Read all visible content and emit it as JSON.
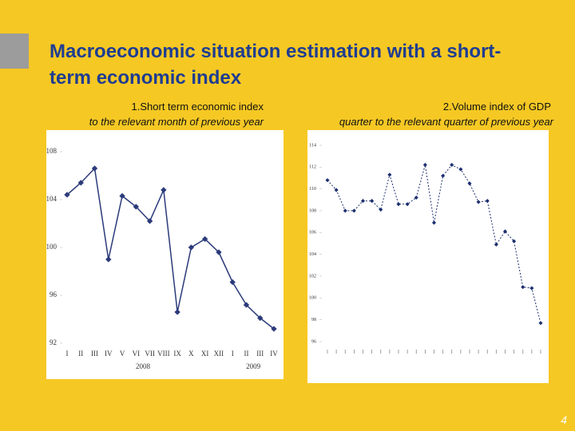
{
  "title": "Macroeconomic situation estimation with a short-term economic index",
  "page_number": "4",
  "chart_data": [
    {
      "type": "line",
      "title": "1.Short term economic index",
      "subtitle": "to the relevant month of previous year",
      "categories": [
        "I",
        "II",
        "III",
        "IV",
        "V",
        "VI",
        "VII",
        "VIII",
        "IX",
        "X",
        "XI",
        "XII",
        "I",
        "II",
        "III",
        "IV"
      ],
      "x_groups": [
        "2008",
        "2009"
      ],
      "values": [
        104.4,
        105.4,
        106.6,
        99.0,
        104.3,
        103.4,
        102.2,
        104.8,
        94.6,
        100.0,
        100.7,
        99.6,
        97.1,
        95.2,
        94.1,
        93.2
      ],
      "color": "#2b3a7a",
      "ylim": [
        92,
        108
      ],
      "yticks": [
        92,
        96,
        100,
        104,
        108
      ],
      "grid": false
    },
    {
      "type": "line",
      "title": "2.Volume index of GDP",
      "subtitle": "quarter to the relevant quarter of previous year",
      "categories": [
        null,
        null,
        null,
        null,
        null,
        null,
        null,
        null,
        null,
        null,
        null,
        null,
        null,
        null,
        null,
        null,
        null,
        null,
        null,
        null,
        null,
        null,
        null,
        null,
        null
      ],
      "values": [
        110.8,
        109.9,
        108.0,
        108.0,
        108.9,
        108.9,
        108.1,
        111.3,
        108.6,
        108.6,
        109.2,
        112.2,
        106.9,
        111.2,
        112.2,
        111.8,
        110.5,
        108.8,
        108.9,
        104.9,
        106.1,
        105.2,
        101.0,
        100.9,
        97.7
      ],
      "color": "#1c2f6e",
      "ylim": [
        96,
        114
      ],
      "yticks": [
        96,
        98,
        100,
        102,
        104,
        106,
        108,
        110,
        112,
        114
      ],
      "grid": false
    }
  ]
}
